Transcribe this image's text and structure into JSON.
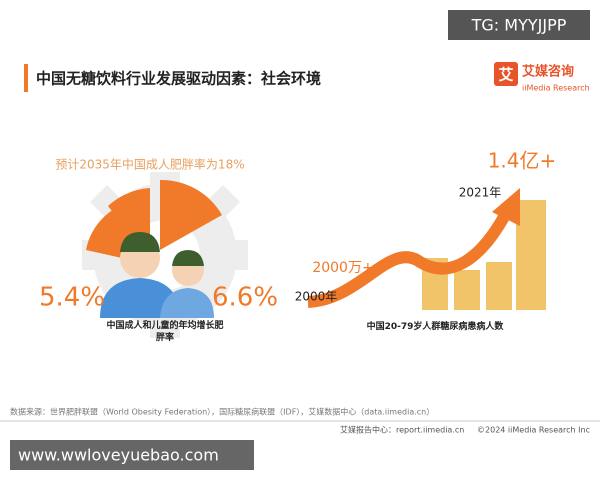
{
  "watermark_top": "TG: MYYJJPP",
  "header": {
    "title": "中国无糖饮料行业发展驱动因素：社会环境",
    "logo_icon": "艾",
    "logo_name": "艾媒咨询",
    "logo_sub": "iiMedia Research"
  },
  "left_panel": {
    "forecast": "预计2035年中国成人肥胖率为18%",
    "adult_rate": "5.4%",
    "child_rate": "6.6%",
    "caption": "中国成人和儿童的年均增长肥胖率"
  },
  "right_panel": {
    "start_value": "2000万+",
    "start_year": "2000年",
    "end_year": "2021年",
    "end_value": "1.4亿+",
    "caption": "中国20-79岁人群糖尿病患病人数"
  },
  "footer": {
    "source": "数据来源：世界肥胖联盟（World Obesity Federation），国际糖尿病联盟（IDF），艾媒数据中心（data.iimedia.cn）",
    "report_center": "艾媒报告中心：report.iimedia.cn",
    "copyright": "©2024  iiMedia Research  Inc"
  },
  "watermark_bottom": "www.wwloveyuebao.com"
}
